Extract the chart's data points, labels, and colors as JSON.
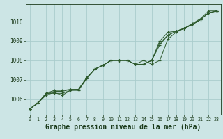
{
  "background_color": "#cce5e5",
  "grid_color": "#aacccc",
  "line_color": "#2d5a2d",
  "xlabel": "Graphe pression niveau de la mer (hPa)",
  "xlabel_fontsize": 7,
  "xlabel_color": "#1a3a1a",
  "tick_color": "#1a3a1a",
  "ylim": [
    1005.2,
    1010.9
  ],
  "xlim": [
    -0.5,
    23.5
  ],
  "yticks": [
    1006,
    1007,
    1008,
    1009,
    1010
  ],
  "xticks": [
    0,
    1,
    2,
    3,
    4,
    5,
    6,
    7,
    8,
    9,
    10,
    11,
    12,
    13,
    14,
    15,
    16,
    17,
    18,
    19,
    20,
    21,
    22,
    23
  ],
  "series": [
    [
      1005.5,
      1005.8,
      1006.2,
      1006.35,
      1006.2,
      1006.45,
      1006.45,
      1007.05,
      1007.55,
      1007.75,
      1008.0,
      1008.0,
      1008.0,
      1007.8,
      1008.0,
      1007.8,
      1008.0,
      1009.1,
      1009.45,
      1009.65,
      1009.9,
      1010.15,
      1010.55,
      1010.55
    ],
    [
      1005.5,
      1005.8,
      1006.25,
      1006.4,
      1006.4,
      1006.5,
      1006.5,
      1007.1,
      1007.55,
      1007.75,
      1008.0,
      1008.0,
      1008.0,
      1007.8,
      1007.8,
      1008.0,
      1008.9,
      1009.3,
      1009.5,
      1009.65,
      1009.85,
      1010.1,
      1010.45,
      1010.55
    ],
    [
      1005.5,
      1005.8,
      1006.3,
      1006.45,
      1006.45,
      1006.5,
      1006.5,
      1007.1,
      1007.55,
      1007.75,
      1008.0,
      1008.0,
      1008.0,
      1007.8,
      1007.8,
      1008.0,
      1008.8,
      1009.3,
      1009.5,
      1009.65,
      1009.85,
      1010.1,
      1010.45,
      1010.55
    ],
    [
      1005.5,
      1005.8,
      1006.3,
      1006.3,
      1006.3,
      1006.45,
      1006.5,
      1007.1,
      1007.55,
      1007.75,
      1008.0,
      1008.0,
      1008.0,
      1007.8,
      1007.8,
      1008.0,
      1009.0,
      1009.45,
      1009.5,
      1009.65,
      1009.85,
      1010.1,
      1010.45,
      1010.55
    ]
  ]
}
